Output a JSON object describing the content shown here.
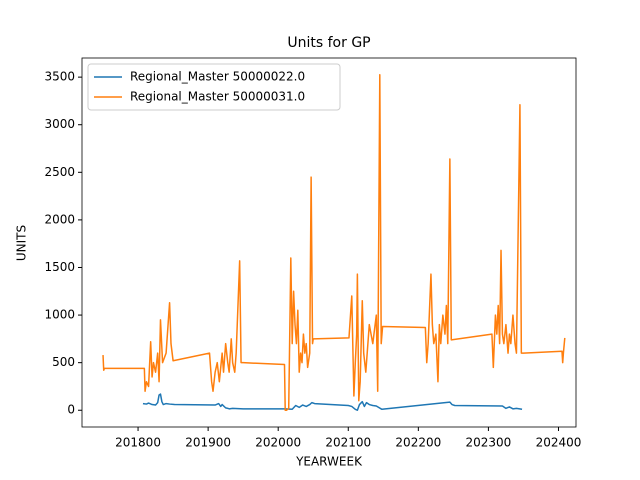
{
  "chart_data": {
    "type": "line",
    "title": "Units for GP",
    "x_label": "YEARWEEK",
    "y_label": "UNITS",
    "xlim": [
      201720,
      202425
    ],
    "ylim": [
      -176,
      3701
    ],
    "xticks": [
      201800,
      201900,
      202000,
      202100,
      202200,
      202300,
      202400
    ],
    "yticks": [
      0,
      500,
      1000,
      1500,
      2000,
      2500,
      3000,
      3500
    ],
    "legend": "upper left",
    "series": [
      {
        "name": "Regional_Master 50000022.0",
        "color": "#1f77b4",
        "x": [
          201807,
          201812,
          201815,
          201820,
          201825,
          201828,
          201830,
          201832,
          201834,
          201836,
          201840,
          201845,
          201852,
          201910,
          201915,
          201918,
          201920,
          201925,
          201928,
          201930,
          201935,
          201950,
          202010,
          202020,
          202025,
          202030,
          202035,
          202040,
          202045,
          202048,
          202052,
          202100,
          202105,
          202110,
          202113,
          202116,
          202120,
          202123,
          202126,
          202130,
          202135,
          202140,
          202148,
          202245,
          202248,
          202252,
          202320,
          202325,
          202330,
          202335,
          202340,
          202348
        ],
        "values": [
          70,
          65,
          75,
          60,
          55,
          80,
          160,
          170,
          90,
          60,
          70,
          65,
          60,
          55,
          70,
          40,
          60,
          25,
          20,
          15,
          20,
          15,
          15,
          10,
          50,
          30,
          55,
          40,
          60,
          80,
          70,
          50,
          40,
          10,
          0,
          60,
          90,
          40,
          80,
          60,
          50,
          45,
          10,
          85,
          60,
          50,
          45,
          20,
          35,
          15,
          20,
          10
        ]
      },
      {
        "name": "Regional_Master 50000031.0",
        "color": "#ff7f0e",
        "x": [
          201750,
          201751,
          201752,
          201809,
          201810,
          201812,
          201815,
          201818,
          201820,
          201822,
          201825,
          201828,
          201830,
          201832,
          201835,
          201840,
          201845,
          201847,
          201850,
          201902,
          201905,
          201907,
          201910,
          201913,
          201916,
          201920,
          201922,
          201925,
          201928,
          201930,
          201933,
          201935,
          201938,
          201940,
          201945,
          201947,
          201950,
          202009,
          202010,
          202012,
          202015,
          202018,
          202020,
          202022,
          202024,
          202026,
          202028,
          202030,
          202032,
          202034,
          202036,
          202038,
          202040,
          202042,
          202045,
          202047,
          202049,
          202050,
          202101,
          202105,
          202108,
          202110,
          202112,
          202113,
          202115,
          202117,
          202120,
          202122,
          202125,
          202130,
          202135,
          202140,
          202142,
          202145,
          202147,
          202149,
          202210,
          202212,
          202214,
          202218,
          202220,
          202222,
          202225,
          202228,
          202230,
          202232,
          202235,
          202238,
          202240,
          202242,
          202245,
          202247,
          202305,
          202307,
          202310,
          202312,
          202314,
          202316,
          202318,
          202320,
          202322,
          202325,
          202328,
          202330,
          202332,
          202335,
          202338,
          202340,
          202345,
          202347,
          202350,
          202405,
          202406,
          202407,
          202409
        ],
        "values": [
          580,
          420,
          440,
          440,
          200,
          300,
          250,
          720,
          350,
          500,
          400,
          600,
          300,
          950,
          500,
          600,
          1130,
          700,
          520,
          600,
          300,
          200,
          400,
          500,
          300,
          600,
          400,
          700,
          500,
          400,
          750,
          500,
          400,
          600,
          1570,
          500,
          500,
          480,
          0,
          0,
          20,
          1600,
          700,
          1250,
          900,
          700,
          1050,
          400,
          600,
          500,
          800,
          600,
          700,
          450,
          600,
          2450,
          700,
          750,
          760,
          1200,
          150,
          500,
          800,
          1430,
          100,
          300,
          1150,
          600,
          400,
          900,
          700,
          1000,
          200,
          3525,
          700,
          880,
          870,
          500,
          700,
          1430,
          900,
          700,
          800,
          300,
          900,
          700,
          1000,
          800,
          1100,
          700,
          2640,
          740,
          800,
          450,
          1000,
          800,
          1100,
          700,
          1680,
          800,
          700,
          900,
          600,
          800,
          700,
          1000,
          700,
          600,
          3210,
          600,
          600,
          620,
          500,
          600,
          760
        ]
      }
    ]
  }
}
